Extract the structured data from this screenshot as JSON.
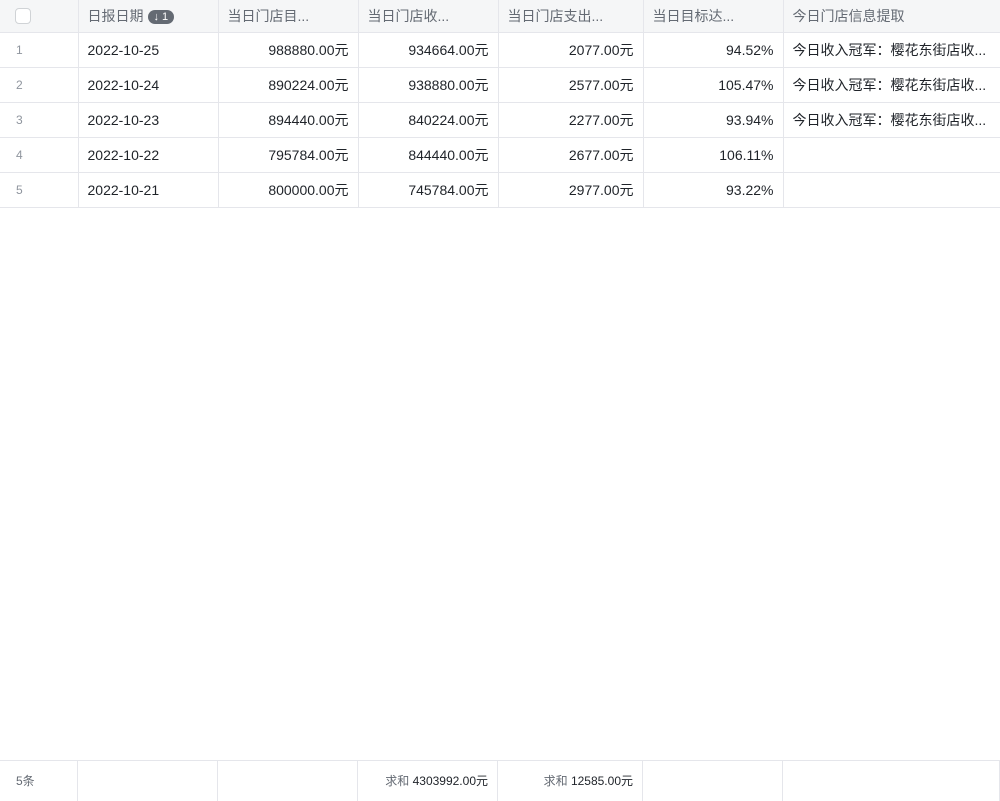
{
  "columns": [
    "日报日期",
    "当日门店目...",
    "当日门店收...",
    "当日门店支出...",
    "当日目标达...",
    "今日门店信息提取"
  ],
  "sort_badge": "↓ 1",
  "rows": [
    {
      "idx": "1",
      "date": "2022-10-25",
      "target": "988880.00元",
      "income": "934664.00元",
      "expense": "2077.00元",
      "rate": "94.52%",
      "info": "今日收入冠军：樱花东街店收..."
    },
    {
      "idx": "2",
      "date": "2022-10-24",
      "target": "890224.00元",
      "income": "938880.00元",
      "expense": "2577.00元",
      "rate": "105.47%",
      "info": "今日收入冠军：樱花东街店收..."
    },
    {
      "idx": "3",
      "date": "2022-10-23",
      "target": "894440.00元",
      "income": "840224.00元",
      "expense": "2277.00元",
      "rate": "93.94%",
      "info": "今日收入冠军：樱花东街店收..."
    },
    {
      "idx": "4",
      "date": "2022-10-22",
      "target": "795784.00元",
      "income": "844440.00元",
      "expense": "2677.00元",
      "rate": "106.11%",
      "info": ""
    },
    {
      "idx": "5",
      "date": "2022-10-21",
      "target": "800000.00元",
      "income": "745784.00元",
      "expense": "2977.00元",
      "rate": "93.22%",
      "info": ""
    }
  ],
  "footer": {
    "count": "5条",
    "sum_label": "求和",
    "income_sum": "4303992.00元",
    "expense_sum": "12585.00元"
  }
}
